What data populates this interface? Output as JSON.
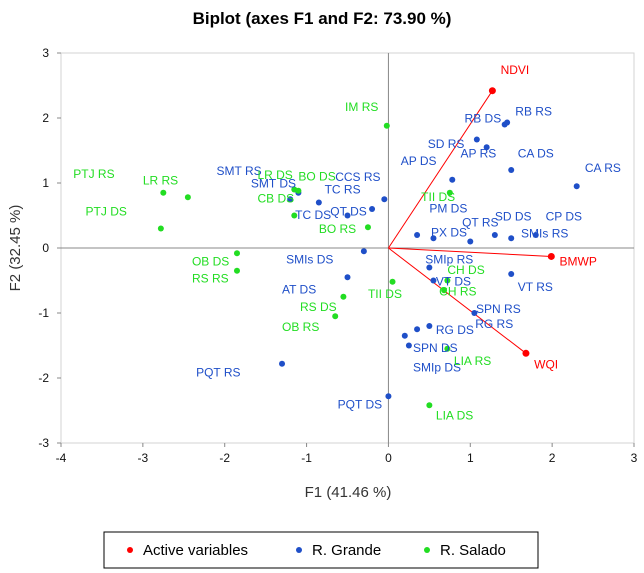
{
  "chart_data": {
    "type": "scatter",
    "title": "Biplot (axes F1 and F2: 73.90 %)",
    "xlabel": "F1 (41.46 %)",
    "ylabel": "F2 (32.45 %)",
    "xlim": [
      -4,
      3
    ],
    "ylim": [
      -3,
      3
    ],
    "xticks": [
      -4,
      -3,
      -2,
      -1,
      0,
      1,
      2,
      3
    ],
    "yticks": [
      -3,
      -2,
      -1,
      0,
      1,
      2,
      3
    ],
    "grid": false,
    "legend_position": "bottom",
    "colors": {
      "active": "#ff0000",
      "grande": "#1f4fc8",
      "salado": "#22dd22"
    },
    "series": [
      {
        "name": "Active variables",
        "key": "active",
        "vectors": true,
        "points": [
          {
            "label": "NDVI",
            "x": 1.27,
            "y": 2.42,
            "lx": 1.37,
            "ly": 2.68,
            "anchor": "start"
          },
          {
            "label": "BMWP",
            "x": 1.99,
            "y": -0.13,
            "lx": 2.09,
            "ly": -0.27,
            "anchor": "start"
          },
          {
            "label": "WQI",
            "x": 1.68,
            "y": -1.62,
            "lx": 1.78,
            "ly": -1.85,
            "anchor": "start"
          }
        ]
      },
      {
        "name": "R. Grande",
        "key": "grande",
        "vectors": false,
        "points": [
          {
            "label": "RB DS",
            "x": 1.42,
            "y": 1.9,
            "lx": 0.93,
            "ly": 1.93,
            "anchor": "start"
          },
          {
            "label": "RB RS",
            "x": 1.45,
            "y": 1.93,
            "lx": 1.55,
            "ly": 2.04,
            "anchor": "start"
          },
          {
            "label": "SD RS",
            "x": 1.08,
            "y": 1.67,
            "lx": 0.48,
            "ly": 1.54,
            "anchor": "start"
          },
          {
            "label": "AP RS",
            "x": 1.2,
            "y": 1.55,
            "lx": 0.88,
            "ly": 1.39,
            "anchor": "start"
          },
          {
            "label": "AP DS",
            "x": 0.78,
            "y": 1.05,
            "lx": 0.15,
            "ly": 1.28,
            "anchor": "start"
          },
          {
            "label": "CA DS",
            "x": 1.5,
            "y": 1.2,
            "lx": 1.58,
            "ly": 1.39,
            "anchor": "start"
          },
          {
            "label": "CA RS",
            "x": 2.3,
            "y": 0.95,
            "lx": 2.4,
            "ly": 1.17,
            "anchor": "start"
          },
          {
            "label": "SMT RS",
            "x": -1.2,
            "y": 0.75,
            "lx": -2.1,
            "ly": 1.12,
            "anchor": "start"
          },
          {
            "label": "SMT DS",
            "x": -1.1,
            "y": 0.85,
            "lx": -1.68,
            "ly": 0.93,
            "anchor": "start"
          },
          {
            "label": "CCS RS",
            "x": -0.05,
            "y": 0.75,
            "lx": -0.65,
            "ly": 1.03,
            "anchor": "start"
          },
          {
            "label": "TC RS",
            "x": -0.2,
            "y": 0.6,
            "lx": -0.78,
            "ly": 0.84,
            "anchor": "start"
          },
          {
            "label": "TC DS",
            "x": -0.85,
            "y": 0.7,
            "lx": -1.14,
            "ly": 0.45,
            "anchor": "start"
          },
          {
            "label": "QT DS",
            "x": -0.5,
            "y": 0.5,
            "lx": -0.71,
            "ly": 0.5,
            "anchor": "start"
          },
          {
            "label": "PM DS",
            "x": 0.55,
            "y": 0.15,
            "lx": 0.5,
            "ly": 0.55,
            "anchor": "start"
          },
          {
            "label": "QT RS",
            "x": 1.0,
            "y": 0.1,
            "lx": 0.9,
            "ly": 0.33,
            "anchor": "start"
          },
          {
            "label": "SD DS",
            "x": 1.3,
            "y": 0.2,
            "lx": 1.3,
            "ly": 0.42,
            "anchor": "start"
          },
          {
            "label": "CP DS",
            "x": 1.8,
            "y": 0.2,
            "lx": 1.92,
            "ly": 0.42,
            "anchor": "start"
          },
          {
            "label": "SMIs RS",
            "x": 1.5,
            "y": 0.15,
            "lx": 1.62,
            "ly": 0.16,
            "anchor": "start"
          },
          {
            "label": "PX DS",
            "x": 0.35,
            "y": 0.2,
            "lx": 0.52,
            "ly": 0.18,
            "anchor": "start"
          },
          {
            "label": "SMIs DS",
            "x": -0.3,
            "y": -0.05,
            "lx": -1.25,
            "ly": -0.24,
            "anchor": "start"
          },
          {
            "label": "SMIp RS",
            "x": 0.5,
            "y": -0.3,
            "lx": 0.45,
            "ly": -0.24,
            "anchor": "start"
          },
          {
            "label": "AT DS",
            "x": -0.5,
            "y": -0.45,
            "lx": -1.3,
            "ly": -0.7,
            "anchor": "start"
          },
          {
            "label": "VT DS",
            "x": 0.55,
            "y": -0.5,
            "lx": 0.58,
            "ly": -0.58,
            "anchor": "start"
          },
          {
            "label": "VT RS",
            "x": 1.5,
            "y": -0.4,
            "lx": 1.58,
            "ly": -0.66,
            "anchor": "start"
          },
          {
            "label": "SPN RS",
            "x": 1.05,
            "y": -1.0,
            "lx": 1.07,
            "ly": -1.0,
            "anchor": "start"
          },
          {
            "label": "RG RS",
            "x": 0.5,
            "y": -1.2,
            "lx": 1.06,
            "ly": -1.23,
            "anchor": "start"
          },
          {
            "label": "RG DS",
            "x": 0.35,
            "y": -1.25,
            "lx": 0.58,
            "ly": -1.32,
            "anchor": "start"
          },
          {
            "label": "SPN DS",
            "x": 0.2,
            "y": -1.35,
            "lx": 0.3,
            "ly": -1.6,
            "anchor": "start"
          },
          {
            "label": "SMIp DS",
            "x": 0.25,
            "y": -1.5,
            "lx": 0.3,
            "ly": -1.9,
            "anchor": "start"
          },
          {
            "label": "PQT RS",
            "x": -1.3,
            "y": -1.78,
            "lx": -2.35,
            "ly": -1.98,
            "anchor": "start"
          },
          {
            "label": "PQT DS",
            "x": 0.0,
            "y": -2.28,
            "lx": -0.62,
            "ly": -2.47,
            "anchor": "start"
          }
        ]
      },
      {
        "name": "R. Salado",
        "key": "salado",
        "vectors": false,
        "points": [
          {
            "label": "IM RS",
            "x": -0.02,
            "y": 1.88,
            "lx": -0.53,
            "ly": 2.11,
            "anchor": "start"
          },
          {
            "label": "PTJ RS",
            "x": -2.75,
            "y": 0.85,
            "lx": -3.85,
            "ly": 1.08,
            "anchor": "start"
          },
          {
            "label": "LR RS",
            "x": -2.45,
            "y": 0.78,
            "lx": -3.0,
            "ly": 0.98,
            "anchor": "start"
          },
          {
            "label": "PTJ DS",
            "x": -2.78,
            "y": 0.3,
            "lx": -3.7,
            "ly": 0.5,
            "anchor": "start"
          },
          {
            "label": "LR DS",
            "x": -1.15,
            "y": 0.9,
            "lx": -1.6,
            "ly": 1.06,
            "anchor": "start"
          },
          {
            "label": "BO DS",
            "x": -1.1,
            "y": 0.88,
            "lx": -1.1,
            "ly": 1.04,
            "anchor": "start"
          },
          {
            "label": "CB DS",
            "x": -1.15,
            "y": 0.5,
            "lx": -1.6,
            "ly": 0.7,
            "anchor": "start"
          },
          {
            "label": "BO RS",
            "x": -0.25,
            "y": 0.32,
            "lx": -0.85,
            "ly": 0.23,
            "anchor": "start"
          },
          {
            "label": "TII DS",
            "x": 0.75,
            "y": 0.85,
            "lx": 0.4,
            "ly": 0.72,
            "anchor": "start"
          },
          {
            "label": "OB DS",
            "x": -1.85,
            "y": -0.08,
            "lx": -2.4,
            "ly": -0.27,
            "anchor": "start"
          },
          {
            "label": "RS RS",
            "x": -1.85,
            "y": -0.35,
            "lx": -2.4,
            "ly": -0.53,
            "anchor": "start"
          },
          {
            "label": "RS DS",
            "x": -0.55,
            "y": -0.75,
            "lx": -1.08,
            "ly": -0.97,
            "anchor": "start"
          },
          {
            "label": "OB RS",
            "x": -0.65,
            "y": -1.05,
            "lx": -1.3,
            "ly": -1.28,
            "anchor": "start"
          },
          {
            "label": "TII DS",
            "x": 0.05,
            "y": -0.52,
            "lx": -0.25,
            "ly": -0.77,
            "anchor": "start"
          },
          {
            "label": "CH DS",
            "x": 0.72,
            "y": -0.5,
            "lx": 0.72,
            "ly": -0.4,
            "anchor": "start"
          },
          {
            "label": "CH RS",
            "x": 0.68,
            "y": -0.65,
            "lx": 0.62,
            "ly": -0.73,
            "anchor": "start"
          },
          {
            "label": "LIA RS",
            "x": 0.72,
            "y": -1.55,
            "lx": 0.8,
            "ly": -1.8,
            "anchor": "start"
          },
          {
            "label": "LIA DS",
            "x": 0.5,
            "y": -2.42,
            "lx": 0.58,
            "ly": -2.64,
            "anchor": "start"
          }
        ]
      }
    ]
  }
}
